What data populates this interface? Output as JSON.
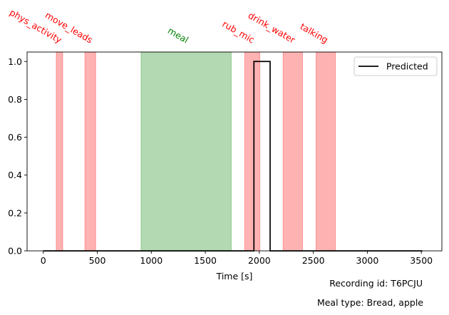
{
  "chart_data": {
    "type": "line",
    "title": "",
    "xlabel": "Time [s]",
    "ylabel": "",
    "xlim": [
      -150,
      3690
    ],
    "ylim": [
      0,
      1.05
    ],
    "x_ticks": [
      0,
      500,
      1000,
      1500,
      2000,
      2500,
      3000,
      3500
    ],
    "y_ticks": [
      0.0,
      0.2,
      0.4,
      0.6,
      0.8,
      1.0
    ],
    "x_tick_labels": [
      "0",
      "500",
      "1000",
      "1500",
      "2000",
      "2500",
      "3000",
      "3500"
    ],
    "y_tick_labels": [
      "0.0",
      "0.2",
      "0.4",
      "0.6",
      "0.8",
      "1.0"
    ],
    "grid": false,
    "legend_position": "top-right",
    "series": [
      {
        "name": "Predicted",
        "color": "#000000",
        "x": [
          0,
          1950,
          1950,
          2100,
          2100,
          3510
        ],
        "y": [
          0,
          0,
          1,
          1,
          0,
          0
        ]
      }
    ],
    "bands": [
      {
        "label": "phys_activity",
        "start": 120,
        "end": 180,
        "color": "#ff0000",
        "label_color": "#ff0000"
      },
      {
        "label": "move_leads",
        "start": 385,
        "end": 485,
        "color": "#ff0000",
        "label_color": "#ff0000"
      },
      {
        "label": "meal",
        "start": 905,
        "end": 1740,
        "color": "#008000",
        "label_color": "#008000"
      },
      {
        "label": "rub_mic",
        "start": 1865,
        "end": 2005,
        "color": "#ff0000",
        "label_color": "#ff0000"
      },
      {
        "label": "drink_water",
        "start": 2220,
        "end": 2400,
        "color": "#ff0000",
        "label_color": "#ff0000"
      },
      {
        "label": "talking",
        "start": 2525,
        "end": 2705,
        "color": "#ff0000",
        "label_color": "#ff0000"
      }
    ],
    "annotations": {
      "recording": "Recording id: T6PCJU",
      "meal_type": "Meal type: Bread, apple"
    }
  }
}
